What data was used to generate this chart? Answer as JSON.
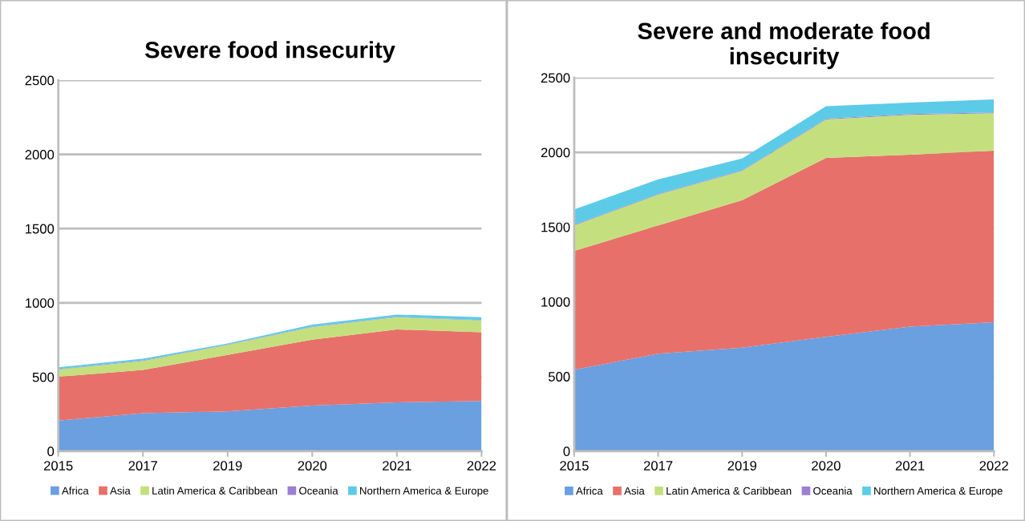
{
  "chart_data": [
    {
      "type": "area",
      "title": "Severe food insecurity",
      "stacked": true,
      "categories": [
        "2015",
        "2017",
        "2019",
        "2020",
        "2021",
        "2022"
      ],
      "ylim": [
        0,
        2500
      ],
      "yticks": [
        0,
        500,
        1000,
        1500,
        2000,
        2500
      ],
      "grid": "y",
      "legend": "bottom",
      "series": [
        {
          "name": "Africa",
          "color": "#6a9fe0",
          "values": [
            206,
            256,
            268,
            308,
            329,
            339
          ]
        },
        {
          "name": "Asia",
          "color": "#e8706a",
          "values": [
            296,
            292,
            381,
            444,
            492,
            463
          ]
        },
        {
          "name": "Latin America & Caribbean",
          "color": "#c4e07e",
          "values": [
            48,
            61,
            67,
            85,
            82,
            79
          ]
        },
        {
          "name": "Oceania",
          "color": "#9b7fd4",
          "values": [
            3,
            3,
            3,
            3,
            3,
            3
          ]
        },
        {
          "name": "Northern America & Europe",
          "color": "#5ccbe8",
          "values": [
            12,
            11,
            7,
            13,
            15,
            19
          ]
        }
      ]
    },
    {
      "type": "area",
      "title": "Severe and moderate food insecurity",
      "stacked": true,
      "categories": [
        "2015",
        "2017",
        "2019",
        "2020",
        "2021",
        "2022"
      ],
      "ylim": [
        0,
        2500
      ],
      "yticks": [
        0,
        500,
        1000,
        1500,
        2000,
        2500
      ],
      "grid": "y",
      "legend": "bottom",
      "series": [
        {
          "name": "Africa",
          "color": "#6a9fe0",
          "values": [
            545,
            652,
            693,
            765,
            833,
            863
          ]
        },
        {
          "name": "Asia",
          "color": "#e8706a",
          "values": [
            795,
            859,
            987,
            1198,
            1151,
            1148
          ]
        },
        {
          "name": "Latin America & Caribbean",
          "color": "#c4e07e",
          "values": [
            171,
            206,
            195,
            257,
            267,
            251
          ]
        },
        {
          "name": "Oceania",
          "color": "#9b7fd4",
          "values": [
            5,
            5,
            5,
            5,
            5,
            5
          ]
        },
        {
          "name": "Northern America & Europe",
          "color": "#5ccbe8",
          "values": [
            102,
            97,
            79,
            84,
            77,
            87
          ]
        }
      ]
    }
  ]
}
